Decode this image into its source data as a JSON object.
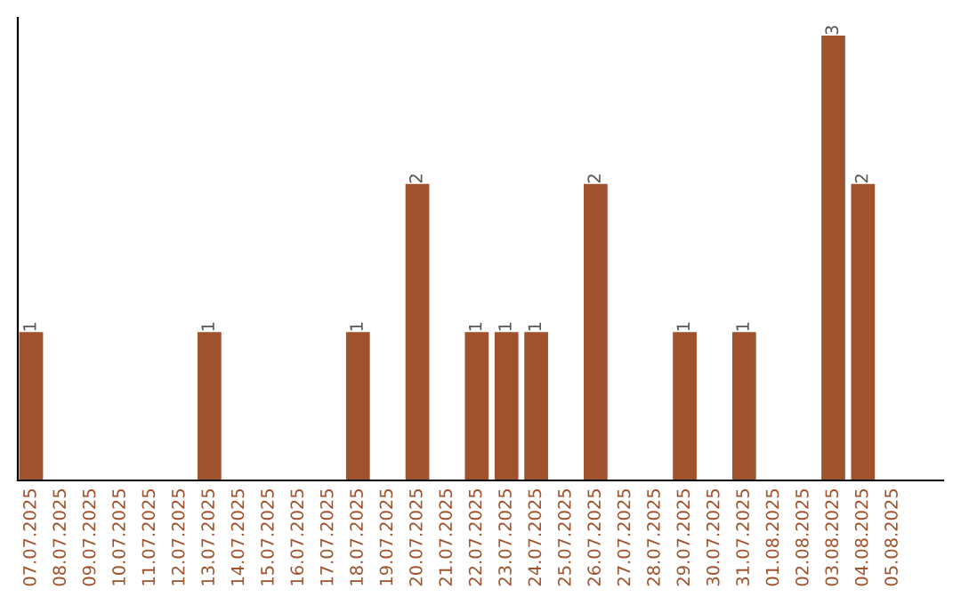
{
  "chart_data": {
    "type": "bar",
    "categories": [
      "07.07.2025",
      "08.07.2025",
      "09.07.2025",
      "10.07.2025",
      "11.07.2025",
      "12.07.2025",
      "13.07.2025",
      "14.07.2025",
      "15.07.2025",
      "16.07.2025",
      "17.07.2025",
      "18.07.2025",
      "19.07.2025",
      "20.07.2025",
      "21.07.2025",
      "22.07.2025",
      "23.07.2025",
      "24.07.2025",
      "25.07.2025",
      "26.07.2025",
      "27.07.2025",
      "28.07.2025",
      "29.07.2025",
      "30.07.2025",
      "31.07.2025",
      "01.08.2025",
      "02.08.2025",
      "03.08.2025",
      "04.08.2025",
      "05.08.2025"
    ],
    "values": [
      1,
      0,
      0,
      0,
      0,
      0,
      1,
      0,
      0,
      0,
      0,
      1,
      0,
      2,
      0,
      1,
      1,
      1,
      0,
      2,
      0,
      0,
      1,
      0,
      1,
      0,
      0,
      3,
      2,
      0
    ],
    "value_labels": [
      "1",
      null,
      null,
      null,
      null,
      null,
      "1",
      null,
      null,
      null,
      null,
      "1",
      null,
      "2",
      null,
      "1",
      "1",
      "1",
      null,
      "2",
      null,
      null,
      "1",
      null,
      "1",
      null,
      null,
      "3",
      "2",
      null
    ],
    "color": "#a0522d",
    "grid": false,
    "legend": false
  }
}
